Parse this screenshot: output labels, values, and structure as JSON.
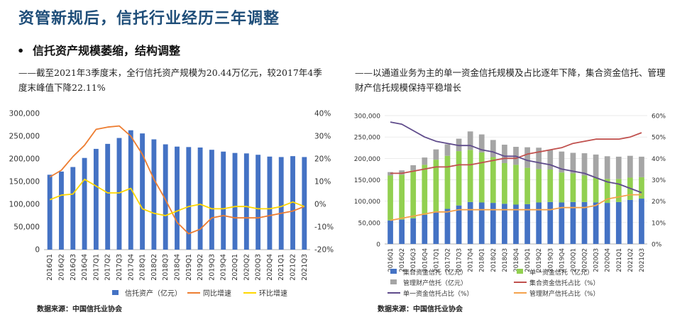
{
  "page": {
    "title": "资管新规后，信托行业经历三年调整",
    "bullet": "•",
    "subtitle": "信托资产规模萎缩，结构调整",
    "left_desc": "——截至2021年3季度末，全行信托资产规模为20.44万亿元，较2017年4季度末峰值下降22.11%",
    "right_desc": "——以通道业务为主的单一资金信托规模及占比逐年下降，集合资金信托、管理财产信托规模保持平稳增长",
    "left_source": "数据来源：中国信托业协会",
    "right_source": "数据来源：中国信托业协会"
  },
  "chart_data": [
    {
      "type": "bar",
      "categories": [
        "2016Q1",
        "2016Q2",
        "2016Q3",
        "2016Q4",
        "2017Q1",
        "2017Q2",
        "2017Q3",
        "2017Q4",
        "2018Q1",
        "2018Q2",
        "2018Q3",
        "2018Q4",
        "2019Q1",
        "2019Q2",
        "2019Q3",
        "2019Q4",
        "2020Q1",
        "2020Q2",
        "2020Q3",
        "2020Q4",
        "2021Q1",
        "2021Q2",
        "2021Q3"
      ],
      "ylim": [
        0,
        300000
      ],
      "yticks": [
        "0",
        "50,000",
        "100,000",
        "150,000",
        "200,000",
        "250,000",
        "300,000"
      ],
      "y2lim": [
        -20,
        40
      ],
      "y2ticks": [
        "-20%",
        "-10%",
        "0%",
        "10%",
        "20%",
        "30%",
        "40%"
      ],
      "legend_position": "bottom",
      "series": [
        {
          "name": "信托资产（亿元）",
          "kind": "bar",
          "axis": "left",
          "color": "#4472c4",
          "values": [
            165000,
            172000,
            182000,
            202000,
            222000,
            233000,
            246000,
            263000,
            256000,
            243000,
            232000,
            227000,
            226000,
            225000,
            220000,
            216000,
            213000,
            212000,
            209000,
            205000,
            204000,
            206000,
            204000
          ]
        },
        {
          "name": "同比增速",
          "kind": "line",
          "axis": "right",
          "color": "#ed7d31",
          "values": [
            12,
            15,
            21,
            26,
            33,
            34,
            34.5,
            30,
            22,
            11,
            2,
            -8,
            -13,
            -11,
            -6,
            -5,
            -6,
            -6,
            -6,
            -5,
            -4,
            -3,
            -1
          ]
        },
        {
          "name": "环比增速",
          "kind": "line",
          "axis": "right",
          "color": "#ffd700",
          "values": [
            2,
            4,
            4.5,
            11,
            8,
            5,
            5,
            7,
            -2,
            -4,
            -5,
            -3,
            -1,
            0,
            -2,
            -2,
            -1,
            -1,
            -2,
            -2,
            -1,
            1,
            -1
          ]
        }
      ]
    },
    {
      "type": "bar",
      "stacked": true,
      "categories": [
        "2016Q1",
        "2016Q2",
        "2016Q3",
        "2016Q4",
        "2017Q1",
        "2017Q2",
        "2017Q3",
        "2017Q4",
        "2018Q1",
        "2018Q2",
        "2018Q3",
        "2018Q4",
        "2019Q1",
        "2019Q2",
        "2019Q3",
        "2019Q4",
        "2020Q1",
        "2020Q2",
        "2020Q3",
        "2020Q4",
        "2021Q1",
        "2021Q2",
        "2021Q3"
      ],
      "ylim": [
        0,
        300000
      ],
      "yticks": [
        "0",
        "50,000",
        "100,000",
        "150,000",
        "200,000",
        "250,000",
        "300,000"
      ],
      "y2lim": [
        0,
        60
      ],
      "y2ticks": [
        "0%",
        "10%",
        "20%",
        "30%",
        "40%",
        "50%",
        "60%"
      ],
      "legend_position": "bottom",
      "series": [
        {
          "name": "集合资金信托（亿元）",
          "kind": "bar",
          "axis": "left",
          "color": "#4472c4",
          "values": [
            55000,
            57000,
            60000,
            68000,
            75000,
            82000,
            90000,
            98000,
            97000,
            96000,
            94000,
            92000,
            93000,
            97000,
            98000,
            97000,
            98000,
            98000,
            97000,
            96000,
            98000,
            103000,
            106000
          ]
        },
        {
          "name": "单一资金信托（亿元）",
          "kind": "bar",
          "axis": "left",
          "color": "#92d050",
          "values": [
            105000,
            105000,
            112000,
            117000,
            122000,
            124000,
            127000,
            122000,
            117000,
            107000,
            95000,
            93000,
            85000,
            78000,
            76000,
            70000,
            67000,
            62000,
            58000,
            56000,
            54000,
            52000,
            50000
          ]
        },
        {
          "name": "管理财产信托（亿元）",
          "kind": "bar",
          "axis": "left",
          "color": "#a5a5a5",
          "values": [
            8000,
            10000,
            12000,
            17000,
            24000,
            27000,
            29000,
            43000,
            42000,
            40000,
            43000,
            42000,
            48000,
            50000,
            46000,
            49000,
            48000,
            52000,
            54000,
            53000,
            52000,
            51000,
            48000
          ]
        },
        {
          "name": "集合资金信托占比（%）",
          "kind": "line",
          "axis": "right",
          "color": "#c0504d",
          "values": [
            33,
            33,
            34,
            35,
            36,
            36,
            37,
            37,
            38,
            39,
            40,
            40,
            42,
            43,
            44,
            45,
            47,
            48,
            49,
            49,
            49,
            50,
            52
          ]
        },
        {
          "name": "单一资金信托占比（%）",
          "kind": "line",
          "axis": "right",
          "color": "#5f4b8b",
          "values": [
            57,
            56,
            53,
            50,
            48,
            47,
            46,
            46,
            44,
            43,
            41,
            41,
            39,
            38,
            37,
            35,
            34,
            33,
            31,
            29,
            28,
            26,
            24
          ]
        },
        {
          "name": "管理财产信托占比（%）",
          "kind": "line",
          "axis": "right",
          "color": "#f4a24c",
          "values": [
            11,
            12,
            13,
            14,
            15,
            15,
            16,
            16,
            16,
            16,
            16,
            16,
            16,
            16,
            16,
            17,
            17,
            17,
            18,
            21,
            22,
            23,
            23
          ]
        }
      ]
    }
  ]
}
